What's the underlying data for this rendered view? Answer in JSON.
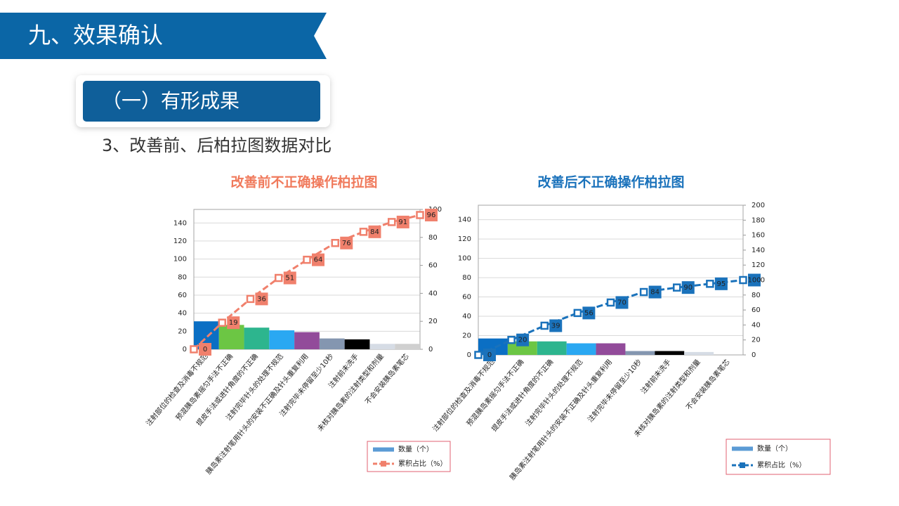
{
  "header": {
    "section": "九、效果确认",
    "subsection": "（一）有形成果",
    "caption": "3、改善前、后柏拉图数据对比"
  },
  "chart_data": [
    {
      "type": "pareto",
      "title": "改善前不正确操作柏拉图",
      "title_color": "#f07a5c",
      "categories": [
        "注射部位的检查及消毒不规范",
        "预混胰岛素摇匀手法不正确",
        "提皮手法或进针角度的不正确",
        "注射完毕针头的处理不规范",
        "胰岛素注射笔用针头的安装不正确及针头重复利用",
        "注射完毕未停留至少10秒",
        "注射前未洗手",
        "未核对胰岛素的注射类型和剂量",
        "不会安装胰岛素笔芯"
      ],
      "series": [
        {
          "name": "数量（个）",
          "color": "#5b9bd5",
          "colors": [
            "#0b6fc4",
            "#6cc644",
            "#2db58e",
            "#2aa8f2",
            "#924b9a",
            "#8496b0",
            "#000000",
            "#d6dce5",
            "#d0d0d0"
          ],
          "values": [
            31,
            27,
            24,
            21,
            19,
            12,
            11,
            6,
            6
          ]
        },
        {
          "name": "累积占比（%）",
          "color": "#f0806c",
          "axis": "y2",
          "values": [
            0,
            19,
            36,
            51,
            64,
            76,
            84,
            91,
            96
          ]
        }
      ],
      "ylim": [
        0,
        155
      ],
      "yticks": [
        0,
        20,
        40,
        60,
        80,
        100,
        120,
        140
      ],
      "y2lim": [
        0,
        100
      ],
      "y2ticks": [
        0,
        20,
        40,
        60,
        80,
        100
      ],
      "grid": true
    },
    {
      "type": "pareto",
      "title": "改善后不正确操作柏拉图",
      "title_color": "#1a72bb",
      "categories": [
        "注射部位的检查及消毒不规范",
        "预混胰岛素摇匀手法不正确",
        "提皮手法或进针角度的不正确",
        "注射完毕针头的处理不规范",
        "胰岛素注射笔用针头的安装不正确及针头重复利用",
        "注射完毕未停留至少10秒",
        "注射前未洗手",
        "未核对胰岛素的注射类型和剂量",
        "不会安装胰岛素笔芯"
      ],
      "series": [
        {
          "name": "数量（个）",
          "color": "#5b9bd5",
          "colors": [
            "#0b6fc4",
            "#6cc644",
            "#2db58e",
            "#2aa8f2",
            "#924b9a",
            "#8496b0",
            "#000000",
            "#d6dce5",
            "#d0d0d0"
          ],
          "values": [
            17,
            14,
            14,
            12,
            12,
            4,
            4,
            3,
            0
          ]
        },
        {
          "name": "累积占比（%）",
          "color": "#1a72bb",
          "axis": "y2",
          "values": [
            0,
            20,
            39,
            56,
            70,
            84,
            90,
            95,
            100
          ]
        }
      ],
      "ylim": [
        0,
        155
      ],
      "yticks": [
        0,
        20,
        40,
        60,
        80,
        100,
        120,
        140
      ],
      "y2lim": [
        0,
        200
      ],
      "y2ticks": [
        0,
        20,
        40,
        60,
        80,
        100,
        120,
        140,
        160,
        180,
        200
      ],
      "grid": true
    }
  ]
}
